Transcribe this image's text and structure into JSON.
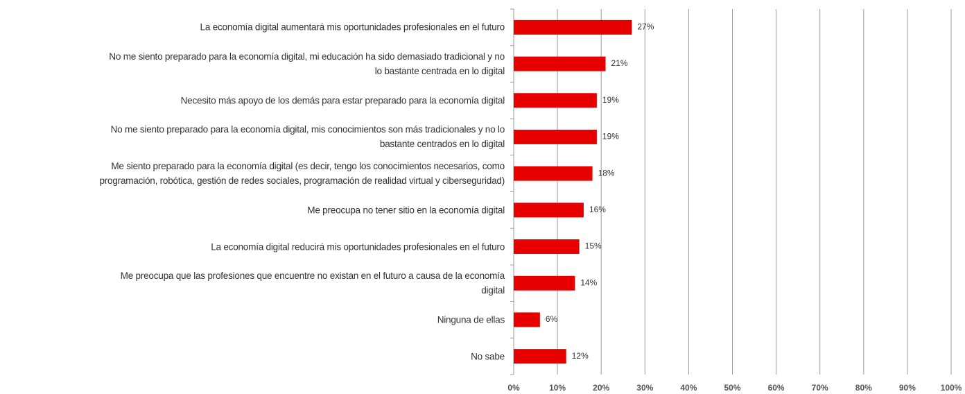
{
  "chart_data": {
    "type": "hbar",
    "categories": [
      "La economía digital aumentará mis oportunidades profesionales en el futuro",
      "No me siento preparado para la economía digital, mi educación ha sido demasiado tradicional y no\nlo bastante centrada en lo digital",
      "Necesito más apoyo de los demás para estar preparado para la economía digital",
      "No me siento preparado para la economía digital, mis conocimientos son más tradicionales y no lo\nbastante centrados en lo digital",
      "Me siento preparado para la economía digital (es decir, tengo los conocimientos necesarios, como\nprogramación, robótica, gestión de redes sociales, programación de realidad virtual y ciberseguridad)",
      "Me preocupa no tener sitio en la economía digital",
      "La economía digital reducirá mis oportunidades profesionales en el futuro",
      "Me preocupa que las profesiones que encuentre no existan en el futuro a causa de la economía\ndigital",
      "Ninguna de ellas",
      "No sabe"
    ],
    "values": [
      27,
      21,
      19,
      19,
      18,
      16,
      15,
      14,
      6,
      12
    ],
    "value_labels": [
      "27%",
      "21%",
      "19%",
      "19%",
      "18%",
      "16%",
      "15%",
      "14%",
      "6%",
      "12%"
    ],
    "color": "#e60000",
    "xlim": [
      0,
      100
    ],
    "xticks": [
      {
        "value": 0,
        "label": "0%"
      },
      {
        "value": 10,
        "label": "10%"
      },
      {
        "value": 20,
        "label": "20%"
      },
      {
        "value": 30,
        "label": "30%"
      },
      {
        "value": 40,
        "label": "40%"
      },
      {
        "value": 50,
        "label": "50%"
      },
      {
        "value": 60,
        "label": "60%"
      },
      {
        "value": 70,
        "label": "70%"
      },
      {
        "value": 80,
        "label": "80%"
      },
      {
        "value": 90,
        "label": "90%"
      },
      {
        "value": 100,
        "label": "100%"
      }
    ],
    "grid": true
  }
}
